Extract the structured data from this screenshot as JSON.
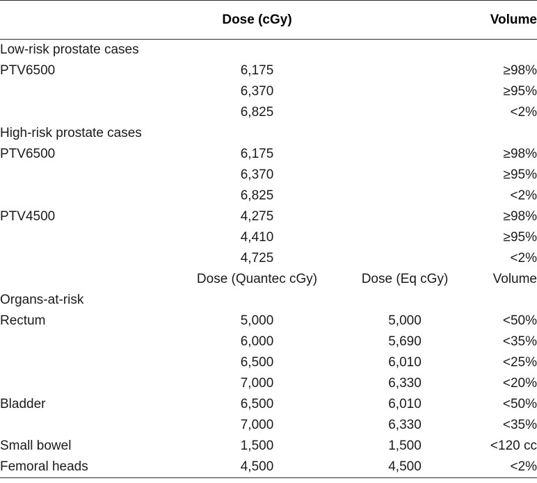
{
  "header": {
    "col1": "",
    "dose": "Dose (cGy)",
    "eq": "",
    "volume": "Volume"
  },
  "rows": [
    {
      "label": "Low-risk prostate cases",
      "dose": "",
      "eq": "",
      "volume": ""
    },
    {
      "label": "PTV6500",
      "dose": "6,175",
      "eq": "",
      "volume": "≥98%"
    },
    {
      "label": "",
      "dose": "6,370",
      "eq": "",
      "volume": "≥95%"
    },
    {
      "label": "",
      "dose": "6,825",
      "eq": "",
      "volume": "<2%"
    },
    {
      "label": "High-risk prostate cases",
      "dose": "",
      "eq": "",
      "volume": ""
    },
    {
      "label": "PTV6500",
      "dose": "6,175",
      "eq": "",
      "volume": "≥98%"
    },
    {
      "label": "",
      "dose": "6,370",
      "eq": "",
      "volume": "≥95%"
    },
    {
      "label": "",
      "dose": "6,825",
      "eq": "",
      "volume": "<2%"
    },
    {
      "label": "PTV4500",
      "dose": "4,275",
      "eq": "",
      "volume": "≥98%"
    },
    {
      "label": "",
      "dose": "4,410",
      "eq": "",
      "volume": "≥95%"
    },
    {
      "label": "",
      "dose": "4,725",
      "eq": "",
      "volume": "<2%"
    },
    {
      "label": "",
      "dose": "Dose (Quantec cGy)",
      "eq": "Dose (Eq cGy)",
      "volume": "Volume"
    },
    {
      "label": "Organs-at-risk",
      "dose": "",
      "eq": "",
      "volume": ""
    },
    {
      "label": "Rectum",
      "dose": "5,000",
      "eq": "5,000",
      "volume": "<50%"
    },
    {
      "label": "",
      "dose": "6,000",
      "eq": "5,690",
      "volume": "<35%"
    },
    {
      "label": "",
      "dose": "6,500",
      "eq": "6,010",
      "volume": "<25%"
    },
    {
      "label": "",
      "dose": "7,000",
      "eq": "6,330",
      "volume": "<20%"
    },
    {
      "label": "Bladder",
      "dose": "6,500",
      "eq": "6,010",
      "volume": "<50%"
    },
    {
      "label": "",
      "dose": "7,000",
      "eq": "6,330",
      "volume": "<35%"
    },
    {
      "label": "Small bowel",
      "dose": "1,500",
      "eq": "1,500",
      "volume": "<120 cc"
    },
    {
      "label": "Femoral heads",
      "dose": "4,500",
      "eq": "4,500",
      "volume": "<2%"
    }
  ]
}
